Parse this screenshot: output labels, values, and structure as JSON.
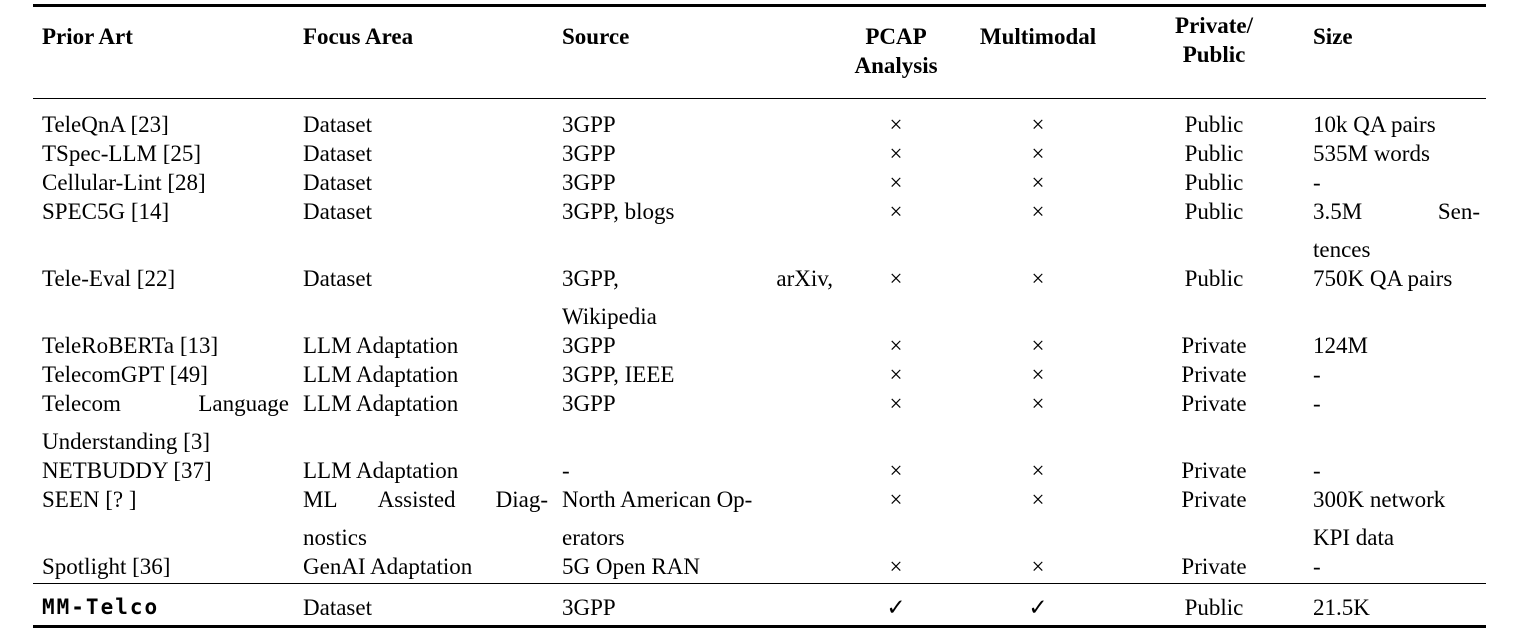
{
  "page": {
    "background_color": "#ffffff",
    "text_color": "#000000",
    "description": "Comparison table of prior art telecom datasets and LLM adaptations"
  },
  "table": {
    "columns": [
      {
        "id": "prior_art",
        "label": "Prior Art",
        "align": "left"
      },
      {
        "id": "focus_area",
        "label": "Focus Area",
        "align": "left"
      },
      {
        "id": "source",
        "label": "Source",
        "align": "left"
      },
      {
        "id": "pcap",
        "label": "PCAP\nAnalysis",
        "align": "center"
      },
      {
        "id": "multimodal",
        "label": "Multimodal",
        "align": "center"
      },
      {
        "id": "visibility",
        "label": "Private/\nPublic",
        "align": "center"
      },
      {
        "id": "size",
        "label": "Size",
        "align": "left"
      }
    ],
    "marks": {
      "no": "×",
      "yes": "✓"
    },
    "rows": [
      {
        "prior_art": "TeleQnA [23]",
        "focus_area": "Dataset",
        "source": "3GPP",
        "pcap": "×",
        "multimodal": "×",
        "visibility": "Public",
        "size": "10k QA pairs"
      },
      {
        "prior_art": "TSpec-LLM [25]",
        "focus_area": "Dataset",
        "source": "3GPP",
        "pcap": "×",
        "multimodal": "×",
        "visibility": "Public",
        "size": "535M words"
      },
      {
        "prior_art": "Cellular-Lint [28]",
        "focus_area": "Dataset",
        "source": "3GPP",
        "pcap": "×",
        "multimodal": "×",
        "visibility": "Public",
        "size": "-"
      },
      {
        "prior_art": "SPEC5G [14]",
        "focus_area": "Dataset",
        "source": "3GPP, blogs",
        "pcap": "×",
        "multimodal": "×",
        "visibility": "Public",
        "size": [
          {
            "spread": [
              "3.5M",
              "Sen-"
            ]
          },
          "tences"
        ]
      },
      {
        "prior_art": "Tele-Eval [22]",
        "focus_area": "Dataset",
        "source": [
          {
            "spread": [
              "3GPP,",
              "arXiv,"
            ]
          },
          "Wikipedia"
        ],
        "pcap": "×",
        "multimodal": "×",
        "visibility": "Public",
        "size": "750K QA pairs"
      },
      {
        "prior_art": "TeleRoBERTa [13]",
        "focus_area": "LLM Adaptation",
        "source": "3GPP",
        "pcap": "×",
        "multimodal": "×",
        "visibility": "Private",
        "size": "124M"
      },
      {
        "prior_art": "TelecomGPT [49]",
        "focus_area": "LLM Adaptation",
        "source": "3GPP, IEEE",
        "pcap": "×",
        "multimodal": "×",
        "visibility": "Private",
        "size": "-"
      },
      {
        "prior_art": [
          {
            "spread": [
              "Telecom",
              "Language"
            ]
          },
          "Understanding [3]"
        ],
        "focus_area": "LLM Adaptation",
        "source": "3GPP",
        "pcap": "×",
        "multimodal": "×",
        "visibility": "Private",
        "size": "-"
      },
      {
        "prior_art": "NETBUDDY [37]",
        "focus_area": "LLM Adaptation",
        "source": "-",
        "pcap": "×",
        "multimodal": "×",
        "visibility": "Private",
        "size": "-"
      },
      {
        "prior_art": "SEEN [? ]",
        "focus_area": [
          {
            "spread": [
              "ML",
              "Assisted",
              "Diag-"
            ]
          },
          "nostics"
        ],
        "source": [
          "North American Op-",
          "erators"
        ],
        "pcap": "×",
        "multimodal": "×",
        "visibility": "Private",
        "size": [
          "300K network",
          "KPI data"
        ]
      },
      {
        "prior_art": "Spotlight [36]",
        "focus_area": "GenAI Adaptation",
        "source": "5G Open RAN",
        "pcap": "×",
        "multimodal": "×",
        "visibility": "Private",
        "size": "-"
      },
      {
        "prior_art": "MM-Telco",
        "focus_area": "Dataset",
        "source": "3GPP",
        "pcap": "✓",
        "multimodal": "✓",
        "visibility": "Public",
        "size": "21.5K",
        "highlight": true
      }
    ]
  }
}
